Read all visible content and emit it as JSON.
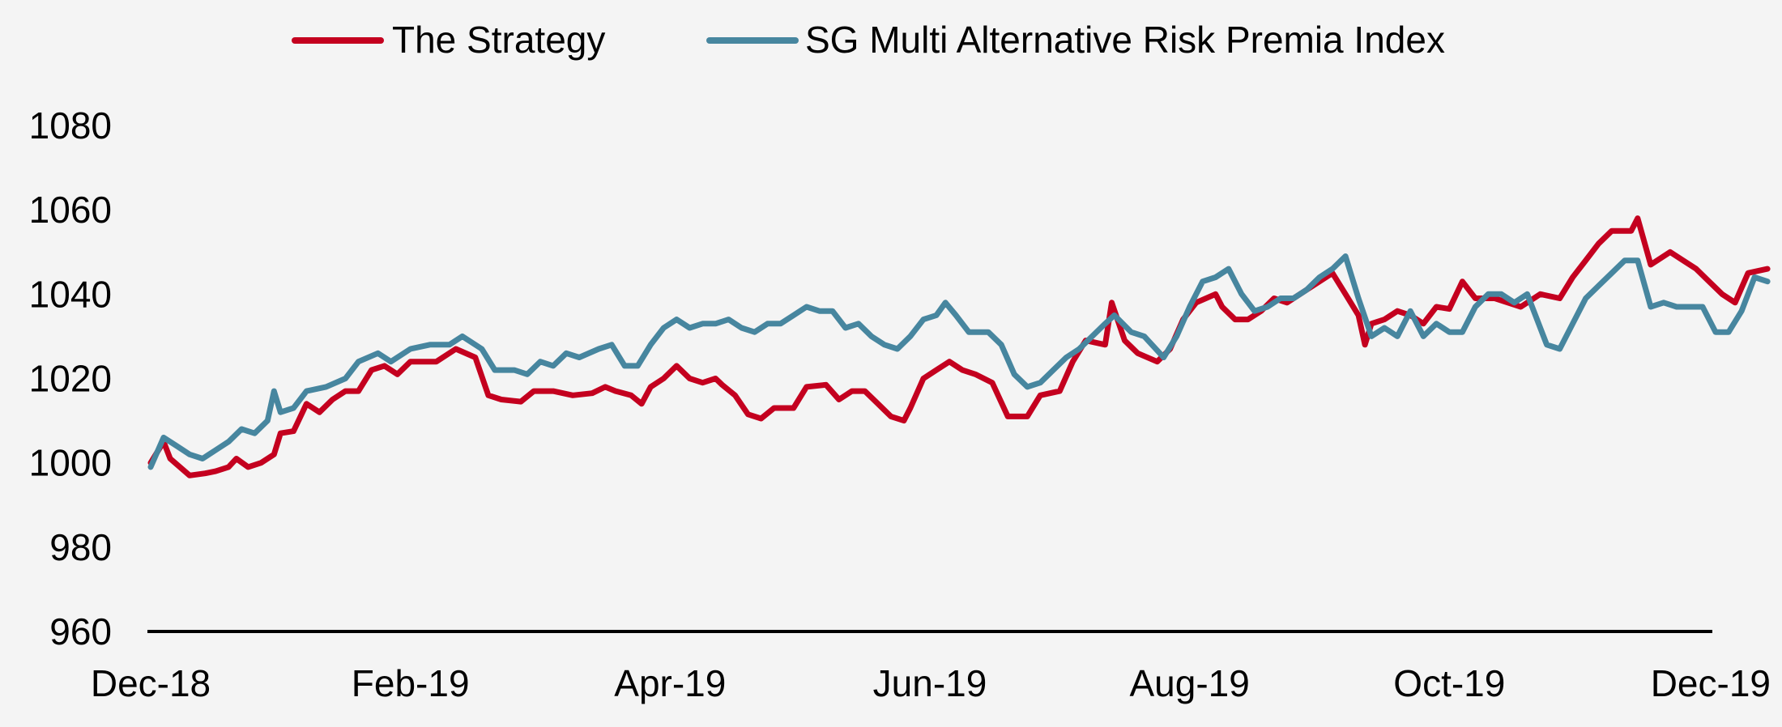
{
  "chart_data": {
    "type": "line",
    "title": "",
    "xlabel": "",
    "ylabel": "",
    "ylim": [
      960,
      1080
    ],
    "yticks": [
      960,
      980,
      1000,
      1020,
      1040,
      1060,
      1080
    ],
    "ytick_labels": [
      "960",
      "980",
      "1000",
      "1020",
      "1040",
      "1060",
      "1080"
    ],
    "xlim": [
      0,
      12
    ],
    "xticks": [
      0,
      2,
      4,
      6,
      8,
      10,
      12
    ],
    "xtick_labels": [
      "Dec-18",
      "Feb-19",
      "Apr-19",
      "Jun-19",
      "Aug-19",
      "Oct-19",
      "Dec-19"
    ],
    "x_unit": "months since Dec-18",
    "grid": false,
    "legend": "top-center",
    "series": [
      {
        "name": "The Strategy",
        "color": "#c4001f",
        "points": [
          [
            0.0,
            1000
          ],
          [
            0.1,
            1005
          ],
          [
            0.15,
            1001
          ],
          [
            0.3,
            997
          ],
          [
            0.42,
            997.5
          ],
          [
            0.5,
            998
          ],
          [
            0.6,
            999
          ],
          [
            0.66,
            1001
          ],
          [
            0.75,
            999
          ],
          [
            0.85,
            1000
          ],
          [
            0.95,
            1002
          ],
          [
            1.0,
            1007
          ],
          [
            1.1,
            1007.5
          ],
          [
            1.2,
            1014
          ],
          [
            1.3,
            1012
          ],
          [
            1.4,
            1015
          ],
          [
            1.5,
            1017
          ],
          [
            1.6,
            1017
          ],
          [
            1.7,
            1022
          ],
          [
            1.8,
            1023
          ],
          [
            1.9,
            1021
          ],
          [
            2.0,
            1024
          ],
          [
            2.1,
            1024
          ],
          [
            2.2,
            1024
          ],
          [
            2.35,
            1027
          ],
          [
            2.5,
            1025
          ],
          [
            2.6,
            1016
          ],
          [
            2.7,
            1015
          ],
          [
            2.85,
            1014.5
          ],
          [
            2.95,
            1017
          ],
          [
            3.1,
            1017
          ],
          [
            3.25,
            1016
          ],
          [
            3.4,
            1016.5
          ],
          [
            3.5,
            1018
          ],
          [
            3.58,
            1017
          ],
          [
            3.7,
            1016
          ],
          [
            3.78,
            1014
          ],
          [
            3.85,
            1018
          ],
          [
            3.95,
            1020
          ],
          [
            4.05,
            1023
          ],
          [
            4.15,
            1020
          ],
          [
            4.25,
            1019
          ],
          [
            4.35,
            1020
          ],
          [
            4.4,
            1018.5
          ],
          [
            4.5,
            1016
          ],
          [
            4.6,
            1011.5
          ],
          [
            4.7,
            1010.5
          ],
          [
            4.8,
            1013
          ],
          [
            4.95,
            1013
          ],
          [
            5.05,
            1018
          ],
          [
            5.2,
            1018.5
          ],
          [
            5.3,
            1015
          ],
          [
            5.4,
            1017
          ],
          [
            5.5,
            1017
          ],
          [
            5.6,
            1014
          ],
          [
            5.7,
            1011
          ],
          [
            5.8,
            1010
          ],
          [
            5.85,
            1013
          ],
          [
            5.95,
            1020
          ],
          [
            6.05,
            1022
          ],
          [
            6.15,
            1024
          ],
          [
            6.25,
            1022
          ],
          [
            6.35,
            1021
          ],
          [
            6.48,
            1019
          ],
          [
            6.6,
            1011
          ],
          [
            6.75,
            1011
          ],
          [
            6.85,
            1016
          ],
          [
            7.0,
            1017
          ],
          [
            7.1,
            1024
          ],
          [
            7.2,
            1029
          ],
          [
            7.35,
            1028
          ],
          [
            7.4,
            1038
          ],
          [
            7.5,
            1029
          ],
          [
            7.6,
            1026
          ],
          [
            7.75,
            1024
          ],
          [
            7.85,
            1027
          ],
          [
            7.95,
            1034
          ],
          [
            8.05,
            1038
          ],
          [
            8.2,
            1040
          ],
          [
            8.25,
            1037
          ],
          [
            8.35,
            1034
          ],
          [
            8.45,
            1034
          ],
          [
            8.55,
            1036
          ],
          [
            8.65,
            1039
          ],
          [
            8.75,
            1038
          ],
          [
            8.9,
            1041
          ],
          [
            9.0,
            1043
          ],
          [
            9.1,
            1045
          ],
          [
            9.2,
            1040
          ],
          [
            9.3,
            1035
          ],
          [
            9.35,
            1028
          ],
          [
            9.4,
            1033
          ],
          [
            9.5,
            1034
          ],
          [
            9.6,
            1036
          ],
          [
            9.7,
            1035
          ],
          [
            9.8,
            1033
          ],
          [
            9.9,
            1037
          ],
          [
            10.0,
            1036.5
          ],
          [
            10.1,
            1043
          ],
          [
            10.2,
            1039
          ],
          [
            10.35,
            1039
          ],
          [
            10.45,
            1038
          ],
          [
            10.55,
            1037
          ],
          [
            10.7,
            1040
          ],
          [
            10.85,
            1039
          ],
          [
            10.95,
            1044
          ],
          [
            11.05,
            1048
          ],
          [
            11.15,
            1052
          ],
          [
            11.25,
            1055
          ],
          [
            11.4,
            1055
          ],
          [
            11.45,
            1058
          ],
          [
            11.55,
            1047
          ],
          [
            11.7,
            1050
          ],
          [
            11.8,
            1048
          ],
          [
            11.9,
            1046
          ],
          [
            12.0,
            1043
          ],
          [
            12.1,
            1040
          ],
          [
            12.2,
            1038
          ],
          [
            12.3,
            1045
          ],
          [
            12.45,
            1046
          ]
        ]
      },
      {
        "name": "SG Multi Alternative Risk Premia Index",
        "color": "#47869f",
        "points": [
          [
            0.0,
            999
          ],
          [
            0.1,
            1006
          ],
          [
            0.2,
            1004
          ],
          [
            0.3,
            1002
          ],
          [
            0.4,
            1001
          ],
          [
            0.5,
            1003
          ],
          [
            0.6,
            1005
          ],
          [
            0.7,
            1008
          ],
          [
            0.8,
            1007
          ],
          [
            0.9,
            1010
          ],
          [
            0.95,
            1017
          ],
          [
            1.0,
            1012
          ],
          [
            1.1,
            1013
          ],
          [
            1.2,
            1017
          ],
          [
            1.35,
            1018
          ],
          [
            1.5,
            1020
          ],
          [
            1.6,
            1024
          ],
          [
            1.75,
            1026
          ],
          [
            1.85,
            1024
          ],
          [
            2.0,
            1027
          ],
          [
            2.15,
            1028
          ],
          [
            2.3,
            1028
          ],
          [
            2.4,
            1030
          ],
          [
            2.55,
            1027
          ],
          [
            2.65,
            1022
          ],
          [
            2.8,
            1022
          ],
          [
            2.9,
            1021
          ],
          [
            3.0,
            1024
          ],
          [
            3.1,
            1023
          ],
          [
            3.2,
            1026
          ],
          [
            3.3,
            1025
          ],
          [
            3.45,
            1027
          ],
          [
            3.55,
            1028
          ],
          [
            3.65,
            1023
          ],
          [
            3.75,
            1023
          ],
          [
            3.85,
            1028
          ],
          [
            3.95,
            1032
          ],
          [
            4.05,
            1034
          ],
          [
            4.15,
            1032
          ],
          [
            4.25,
            1033
          ],
          [
            4.35,
            1033
          ],
          [
            4.45,
            1034
          ],
          [
            4.55,
            1032
          ],
          [
            4.65,
            1031
          ],
          [
            4.75,
            1033
          ],
          [
            4.85,
            1033
          ],
          [
            4.95,
            1035
          ],
          [
            5.05,
            1037
          ],
          [
            5.15,
            1036
          ],
          [
            5.25,
            1036
          ],
          [
            5.35,
            1032
          ],
          [
            5.45,
            1033
          ],
          [
            5.55,
            1030
          ],
          [
            5.65,
            1028
          ],
          [
            5.75,
            1027
          ],
          [
            5.85,
            1030
          ],
          [
            5.95,
            1034
          ],
          [
            6.05,
            1035
          ],
          [
            6.12,
            1038
          ],
          [
            6.2,
            1035
          ],
          [
            6.3,
            1031
          ],
          [
            6.45,
            1031
          ],
          [
            6.55,
            1028
          ],
          [
            6.65,
            1021
          ],
          [
            6.75,
            1018
          ],
          [
            6.85,
            1019
          ],
          [
            6.95,
            1022
          ],
          [
            7.05,
            1025
          ],
          [
            7.15,
            1027
          ],
          [
            7.25,
            1030
          ],
          [
            7.35,
            1033
          ],
          [
            7.42,
            1035
          ],
          [
            7.55,
            1031
          ],
          [
            7.65,
            1030
          ],
          [
            7.8,
            1025
          ],
          [
            7.9,
            1030
          ],
          [
            8.0,
            1037
          ],
          [
            8.1,
            1043
          ],
          [
            8.2,
            1044
          ],
          [
            8.3,
            1046
          ],
          [
            8.4,
            1040
          ],
          [
            8.5,
            1036
          ],
          [
            8.6,
            1037
          ],
          [
            8.7,
            1039
          ],
          [
            8.8,
            1039
          ],
          [
            8.9,
            1041
          ],
          [
            9.0,
            1044
          ],
          [
            9.1,
            1046
          ],
          [
            9.2,
            1049
          ],
          [
            9.3,
            1039
          ],
          [
            9.4,
            1030
          ],
          [
            9.5,
            1032
          ],
          [
            9.6,
            1030
          ],
          [
            9.7,
            1036
          ],
          [
            9.8,
            1030
          ],
          [
            9.9,
            1033
          ],
          [
            10.0,
            1031
          ],
          [
            10.1,
            1031
          ],
          [
            10.2,
            1037
          ],
          [
            10.3,
            1040
          ],
          [
            10.4,
            1040
          ],
          [
            10.5,
            1038
          ],
          [
            10.6,
            1040
          ],
          [
            10.75,
            1028
          ],
          [
            10.85,
            1027
          ],
          [
            10.95,
            1033
          ],
          [
            11.05,
            1039
          ],
          [
            11.15,
            1042
          ],
          [
            11.25,
            1045
          ],
          [
            11.35,
            1048
          ],
          [
            11.45,
            1048
          ],
          [
            11.55,
            1037
          ],
          [
            11.65,
            1038
          ],
          [
            11.75,
            1037
          ],
          [
            11.85,
            1037
          ],
          [
            11.95,
            1037
          ],
          [
            12.05,
            1031
          ],
          [
            12.15,
            1031
          ],
          [
            12.25,
            1036
          ],
          [
            12.35,
            1044
          ],
          [
            12.45,
            1043
          ]
        ]
      }
    ]
  }
}
